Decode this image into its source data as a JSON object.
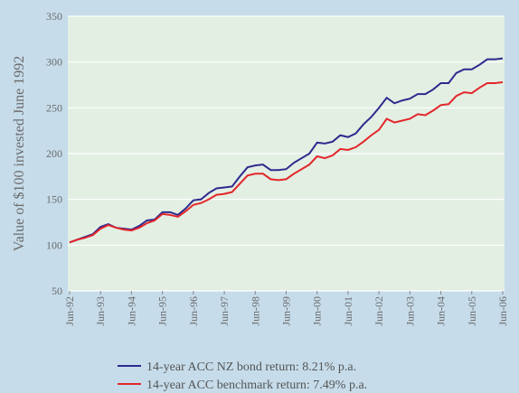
{
  "chart_data": {
    "type": "line",
    "y_label": "Value of $100 invested June 1992",
    "categories": [
      "Jun-92",
      null,
      null,
      null,
      "Jun-93",
      null,
      null,
      null,
      "Jun-94",
      null,
      null,
      null,
      "Jun-95",
      null,
      null,
      null,
      "Jun-96",
      null,
      null,
      null,
      "Jun-97",
      null,
      null,
      null,
      "Jun-98",
      null,
      null,
      null,
      "Jun-99",
      null,
      null,
      null,
      "Jun-00",
      null,
      null,
      null,
      "Jun-01",
      null,
      null,
      null,
      "Jun-02",
      null,
      null,
      null,
      "Jun-03",
      null,
      null,
      null,
      "Jun-04",
      null,
      null,
      null,
      "Jun-05",
      null,
      null,
      null,
      "Jun-06"
    ],
    "series": [
      {
        "name": "14-year ACC NZ bond return: 8.21% p.a.",
        "color": "#2c2a8e",
        "values": [
          103,
          106,
          109,
          112,
          120,
          123,
          119,
          118,
          117,
          121,
          127,
          128,
          136,
          136,
          133,
          140,
          149,
          150,
          157,
          162,
          163,
          164,
          175,
          185,
          187,
          188,
          182,
          182,
          183,
          190,
          195,
          200,
          212,
          211,
          213,
          220,
          218,
          222,
          232,
          240,
          250,
          261,
          255,
          258,
          260,
          265,
          265,
          270,
          277,
          277,
          288,
          292,
          292,
          297,
          303,
          303,
          304
        ]
      },
      {
        "name": "14-year ACC benchmark return: 7.49% p.a.",
        "color": "#e3262b",
        "values": [
          103,
          106,
          108,
          111,
          118,
          122,
          119,
          117,
          116,
          119,
          124,
          127,
          134,
          133,
          131,
          137,
          144,
          146,
          150,
          155,
          156,
          158,
          167,
          176,
          178,
          178,
          172,
          171,
          172,
          178,
          183,
          188,
          197,
          195,
          198,
          205,
          204,
          207,
          213,
          220,
          226,
          238,
          234,
          236,
          238,
          243,
          242,
          247,
          253,
          254,
          263,
          267,
          266,
          272,
          277,
          277,
          278
        ]
      }
    ],
    "ylim": [
      50,
      350
    ],
    "yticks": [
      50,
      100,
      150,
      200,
      250,
      300,
      350
    ],
    "grid": true
  }
}
